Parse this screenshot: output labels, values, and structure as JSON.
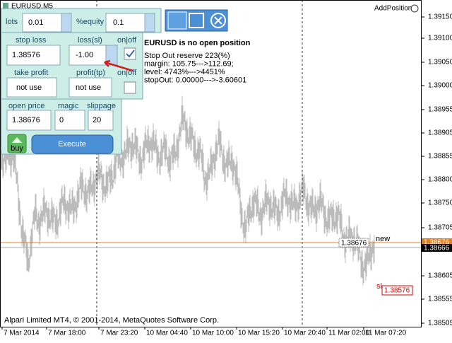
{
  "window": {
    "title": "EURUSD,M5",
    "indicator": "AddPosition"
  },
  "panel": {
    "lots_label": "lots",
    "lots": "0.01",
    "equity_label": "%equity",
    "equity": "0.1",
    "stop_loss_label": "stop loss",
    "loss_sl_label": "loss(sl)",
    "sl_onoff_label": "on|off",
    "stop_loss": "1.38576",
    "loss_sl": "-1.00",
    "take_profit_label": "take profit",
    "profit_tp_label": "profit(tp)",
    "tp_onoff_label": "on|off",
    "take_profit": "not use",
    "profit_tp": "not use",
    "open_price_label": "open price",
    "magic_label": "magic",
    "slippage_label": "slippage",
    "open_price": "1.38676",
    "magic": "0",
    "slippage": "20",
    "buy": "buy",
    "execute": "Execute"
  },
  "info": {
    "title": "EURUSD is no open position",
    "lines": [
      "Stop Out reserve 223(%)",
      "margin: 105.75--->112.69;",
      "level: 4743%--->4451%",
      "stopOut: 0.00000--->-3.60601"
    ]
  },
  "price_axis": {
    "labels": [
      "1.39150",
      "1.39100",
      "1.39050",
      "1.39000",
      "1.38955",
      "1.38905",
      "1.38855",
      "1.38800",
      "1.38750",
      "1.38705",
      "1.38605",
      "1.38555",
      "1.38505"
    ],
    "ask": "1.38676",
    "bid": "1.38666"
  },
  "chart_labels": {
    "entry": "1.38676",
    "new": "new",
    "sl": "sl",
    "sl_price": "1.38576"
  },
  "time_axis": [
    "7 Mar 2014",
    "7 Mar 18:00",
    "7 Mar 23:20",
    "10 Mar 04:40",
    "10 Mar 10:00",
    "10 Mar 15:20",
    "10 Mar 20:40",
    "11 Mar 02:00",
    "11 Mar 07:20"
  ],
  "copyright": "Alpari Limited MT4, © 2001-2014, MetaQuotes Software Corp."
}
